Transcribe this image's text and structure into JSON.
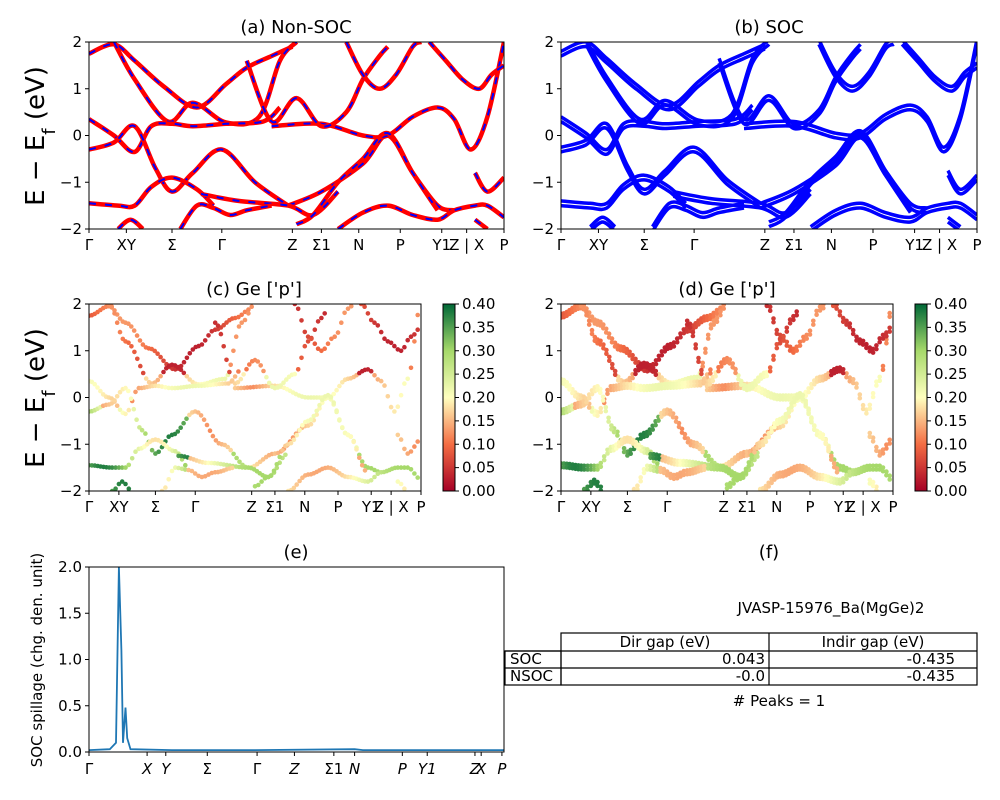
{
  "panels": {
    "a": {
      "title": "(a) Non-SOC",
      "ylabel": "E − E_f (eV)"
    },
    "b": {
      "title": "(b) SOC"
    },
    "c": {
      "title": "(c)  Ge ['p']",
      "ylabel": "E − E_f (eV)"
    },
    "d": {
      "title": "(d) Ge ['p']"
    },
    "e": {
      "title": "(e)",
      "ylabel": "SOC spillage (chg. den. unit)"
    },
    "f": {
      "title": "(f)"
    }
  },
  "kpath_labels": [
    "Γ",
    "XY",
    "Σ",
    "Γ",
    "Z",
    "Σ1",
    "N",
    "P",
    "Y1",
    "Z | X",
    "P"
  ],
  "spillage_labels": [
    "Γ",
    "X",
    "Y",
    "Σ",
    "Γ",
    "Z",
    "Σ1",
    "N",
    "P",
    "Y1",
    "Z",
    "X",
    "P"
  ],
  "energy_ticks": [
    "2",
    "1",
    "0",
    "−1",
    "−2"
  ],
  "colorbar_ticks": [
    "0.40",
    "0.35",
    "0.30",
    "0.25",
    "0.20",
    "0.15",
    "0.10",
    "0.05",
    "0.00"
  ],
  "spillage_ticks": [
    "2.0",
    "1.5",
    "1.0",
    "0.5",
    "0.0"
  ],
  "table": {
    "title": "JVASP-15976_Ba(MgGe)2",
    "headers": [
      "Dir gap (eV)",
      "Indir gap (eV)"
    ],
    "rows": [
      {
        "label": "SOC",
        "dir": "0.043",
        "indir": "-0.435"
      },
      {
        "label": "NSOC",
        "dir": "-0.0",
        "indir": "-0.435"
      }
    ],
    "peaks": "# Peaks = 1"
  },
  "colors": {
    "nonsoc": "#ff0000",
    "soc": "#0000ff",
    "spillage": "#1f77b4",
    "colormap": "RdYlGn"
  },
  "chart_data": [
    {
      "type": "line",
      "title": "(a) Non-SOC",
      "ylabel": "E − E_f (eV)",
      "ylim": [
        -2,
        2
      ],
      "x_ticks": [
        "Γ",
        "XY",
        "Σ",
        "Γ",
        "Z",
        "Σ1",
        "N",
        "P",
        "Y1",
        "Z | X",
        "P"
      ],
      "series": [
        {
          "values": [
            [
              0,
              1.75
            ],
            [
              0.06,
              1.95
            ],
            [
              0.11,
              1.6
            ],
            [
              0.18,
              1.05
            ],
            [
              0.26,
              0.6
            ],
            [
              0.33,
              1.1
            ],
            [
              0.38,
              1.45
            ],
            [
              0.44,
              1.7
            ],
            [
              0.49,
              1.9
            ]
          ]
        },
        {
          "values": [
            [
              0.06,
              2.0
            ],
            [
              0.11,
              1.2
            ],
            [
              0.19,
              0.3
            ],
            [
              0.25,
              0.7
            ],
            [
              0.33,
              0.28
            ],
            [
              0.41,
              0.4
            ],
            [
              0.46,
              1.6
            ],
            [
              0.5,
              2.0
            ]
          ]
        },
        {
          "values": [
            [
              0,
              0.35
            ],
            [
              0.06,
              0.0
            ],
            [
              0.11,
              -0.35
            ],
            [
              0.15,
              0.2
            ],
            [
              0.2,
              0.25
            ],
            [
              0.25,
              0.2
            ],
            [
              0.33,
              0.25
            ],
            [
              0.42,
              0.3
            ],
            [
              0.46,
              0.6
            ]
          ]
        },
        {
          "values": [
            [
              0,
              -0.3
            ],
            [
              0.06,
              -0.15
            ],
            [
              0.11,
              0.2
            ],
            [
              0.16,
              -0.7
            ],
            [
              0.2,
              -1.2
            ],
            [
              0.25,
              -0.8
            ],
            [
              0.32,
              -0.3
            ],
            [
              0.4,
              -1.0
            ],
            [
              0.48,
              -1.5
            ]
          ]
        },
        {
          "values": [
            [
              0.48,
              -1.5
            ],
            [
              0.56,
              -1.2
            ],
            [
              0.66,
              -0.6
            ],
            [
              0.72,
              0.0
            ],
            [
              0.78,
              -0.8
            ],
            [
              0.84,
              -1.5
            ],
            [
              0.88,
              -1.6
            ]
          ]
        },
        {
          "values": [
            [
              0.44,
              0.2
            ],
            [
              0.56,
              0.25
            ],
            [
              0.66,
              0.0
            ],
            [
              0.72,
              0.0
            ],
            [
              0.78,
              0.4
            ],
            [
              0.84,
              0.6
            ],
            [
              0.88,
              0.35
            ],
            [
              0.92,
              -0.3
            ],
            [
              0.96,
              0.4
            ],
            [
              1.0,
              2.0
            ]
          ]
        },
        {
          "values": [
            [
              0.38,
              1.6
            ],
            [
              0.44,
              0.3
            ],
            [
              0.5,
              0.8
            ],
            [
              0.56,
              0.2
            ],
            [
              0.62,
              0.5
            ],
            [
              0.66,
              1.2
            ],
            [
              0.7,
              1.7
            ],
            [
              0.72,
              1.9
            ]
          ]
        },
        {
          "values": [
            [
              0,
              -1.45
            ],
            [
              0.07,
              -1.5
            ],
            [
              0.11,
              -1.5
            ],
            [
              0.15,
              -1.1
            ],
            [
              0.2,
              -0.9
            ],
            [
              0.26,
              -1.15
            ],
            [
              0.3,
              -1.5
            ]
          ]
        },
        {
          "values": [
            [
              0.27,
              -1.25
            ],
            [
              0.36,
              -1.4
            ],
            [
              0.48,
              -1.5
            ],
            [
              0.54,
              -1.7
            ],
            [
              0.6,
              -1.2
            ]
          ]
        },
        {
          "values": [
            [
              0.6,
              -2.0
            ],
            [
              0.66,
              -1.65
            ],
            [
              0.72,
              -1.5
            ],
            [
              0.78,
              -1.7
            ],
            [
              0.84,
              -1.8
            ],
            [
              0.88,
              -1.6
            ],
            [
              0.93,
              -1.5
            ],
            [
              0.96,
              -1.5
            ],
            [
              1.0,
              -1.75
            ]
          ]
        },
        {
          "values": [
            [
              0.93,
              -0.8
            ],
            [
              0.96,
              -1.2
            ],
            [
              1.0,
              -0.9
            ]
          ]
        },
        {
          "values": [
            [
              0.93,
              -1.8
            ],
            [
              0.96,
              -2.0
            ]
          ]
        },
        {
          "values": [
            [
              0.07,
              -2.0
            ],
            [
              0.1,
              -1.8
            ],
            [
              0.13,
              -2.0
            ]
          ]
        },
        {
          "values": [
            [
              0.22,
              -2.0
            ],
            [
              0.26,
              -1.5
            ],
            [
              0.3,
              -1.55
            ],
            [
              0.34,
              -1.7
            ],
            [
              0.38,
              -1.6
            ],
            [
              0.44,
              -1.5
            ]
          ]
        },
        {
          "values": [
            [
              0.5,
              -1.9
            ],
            [
              0.54,
              -1.7
            ],
            [
              0.6,
              -1.0
            ],
            [
              0.66,
              -0.5
            ],
            [
              0.72,
              0.05
            ],
            [
              0.78,
              -0.8
            ],
            [
              0.84,
              -1.6
            ]
          ]
        },
        {
          "values": [
            [
              0.62,
              2.0
            ],
            [
              0.66,
              1.3
            ],
            [
              0.7,
              1.0
            ],
            [
              0.74,
              1.3
            ],
            [
              0.78,
              1.9
            ],
            [
              0.8,
              2.0
            ]
          ]
        },
        {
          "values": [
            [
              0.82,
              2.0
            ],
            [
              0.86,
              1.6
            ],
            [
              0.9,
              1.2
            ],
            [
              0.94,
              1.0
            ],
            [
              0.97,
              1.3
            ],
            [
              1.0,
              1.5
            ]
          ]
        }
      ]
    },
    {
      "type": "line",
      "title": "(b) SOC",
      "ylim": [
        -2,
        2
      ],
      "x_ticks": [
        "Γ",
        "XY",
        "Σ",
        "Γ",
        "Z",
        "Σ1",
        "N",
        "P",
        "Y1",
        "Z | X",
        "P"
      ],
      "series": "same band structure as (a) with spin-orbit splitting (bands doubled, offset ~0.05 eV)"
    },
    {
      "type": "scatter",
      "title": "(c)  Ge ['p']",
      "ylim": [
        -2,
        2
      ],
      "colorbar": {
        "min": 0.0,
        "max": 0.4,
        "colormap": "RdYlGn"
      },
      "x_ticks": [
        "Γ",
        "XY",
        "Σ",
        "Γ",
        "Z",
        "Σ1",
        "N",
        "P",
        "Y1",
        "Z | X",
        "P"
      ]
    },
    {
      "type": "scatter",
      "title": "(d) Ge ['p']",
      "ylim": [
        -2,
        2
      ],
      "colorbar": {
        "min": 0.0,
        "max": 0.4,
        "colormap": "RdYlGn"
      },
      "x_ticks": [
        "Γ",
        "XY",
        "Σ",
        "Γ",
        "Z",
        "Σ1",
        "N",
        "P",
        "Y1",
        "Z | X",
        "P"
      ]
    },
    {
      "type": "line",
      "title": "(e)",
      "ylabel": "SOC spillage (chg. den. unit)",
      "ylim": [
        0,
        2.0
      ],
      "x_ticks": [
        "Γ",
        "X",
        "Y",
        "Σ",
        "Γ",
        "Z",
        "Σ1",
        "N",
        "P",
        "Y1",
        "Z",
        "X",
        "P"
      ],
      "series": [
        {
          "values": [
            [
              0,
              0.02
            ],
            [
              0.05,
              0.03
            ],
            [
              0.065,
              0.1
            ],
            [
              0.072,
              2.0
            ],
            [
              0.078,
              1.1
            ],
            [
              0.082,
              0.1
            ],
            [
              0.088,
              0.48
            ],
            [
              0.092,
              0.15
            ],
            [
              0.1,
              0.03
            ],
            [
              0.2,
              0.02
            ],
            [
              0.4,
              0.02
            ],
            [
              0.64,
              0.03
            ],
            [
              0.66,
              0.02
            ],
            [
              1.0,
              0.02
            ]
          ]
        }
      ]
    }
  ]
}
